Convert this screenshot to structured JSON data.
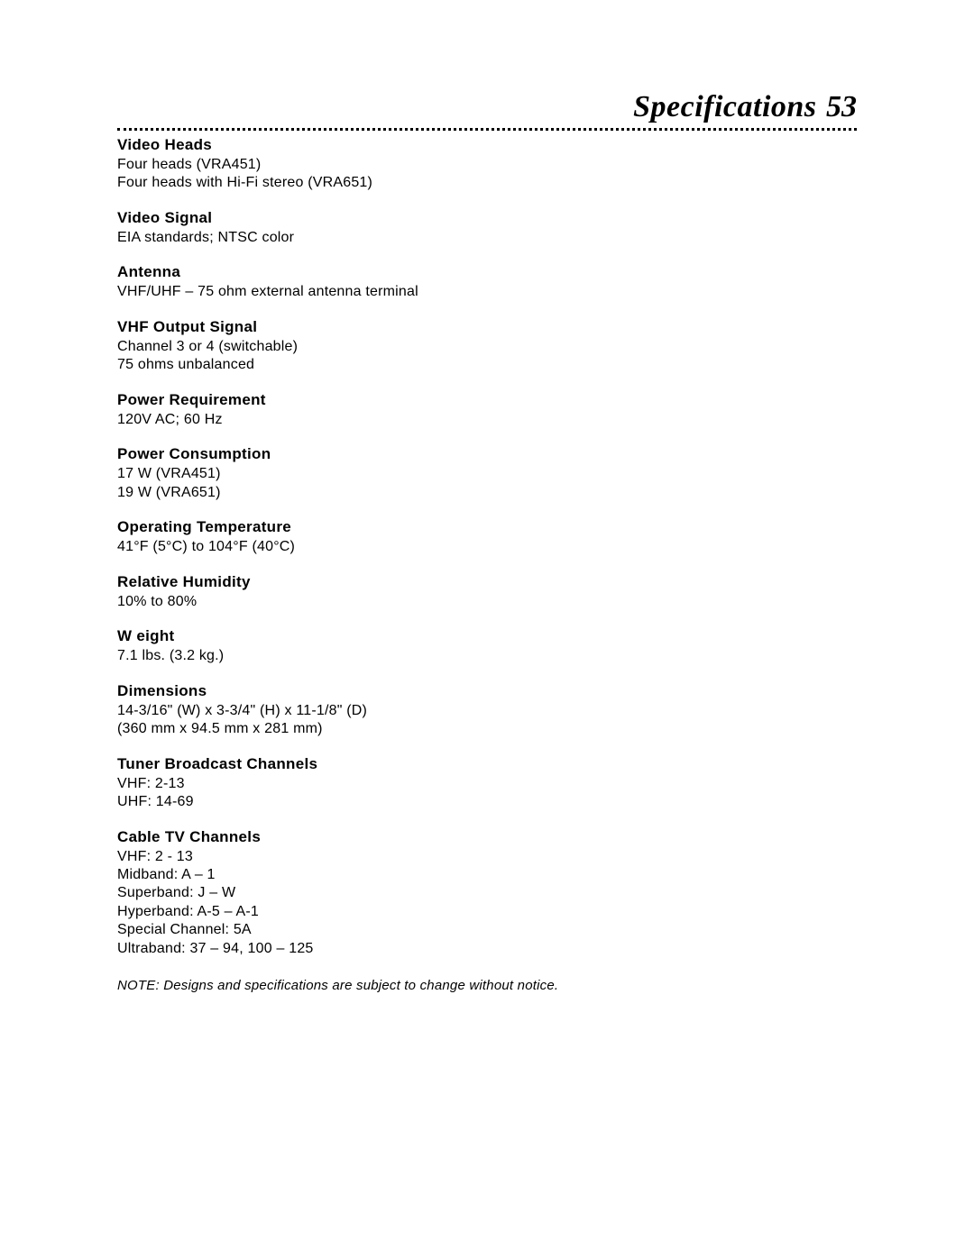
{
  "header": {
    "title": "Specifications",
    "page_number": "53"
  },
  "specs": [
    {
      "heading": "Video Heads",
      "lines": [
        "Four heads (VRA451)",
        "Four heads with Hi-Fi stereo (VRA651)"
      ]
    },
    {
      "heading": "Video Signal",
      "lines": [
        "EIA standards; NTSC color"
      ]
    },
    {
      "heading": "Antenna",
      "lines": [
        "VHF/UHF – 75 ohm external antenna terminal"
      ]
    },
    {
      "heading": "VHF Output Signal",
      "lines": [
        "Channel 3 or 4 (switchable)",
        "75 ohms unbalanced"
      ]
    },
    {
      "heading": "Power Requirement",
      "lines": [
        "120V AC; 60 Hz"
      ]
    },
    {
      "heading": "Power Consumption",
      "lines": [
        "17 W (VRA451)",
        "19 W (VRA651)"
      ]
    },
    {
      "heading": "Operating Temperature",
      "lines": [
        "41°F (5°C) to 104°F (40°C)"
      ]
    },
    {
      "heading": "Relative Humidity",
      "lines": [
        "10% to 80%"
      ]
    },
    {
      "heading": "W eight",
      "lines": [
        "7.1 lbs. (3.2 kg.)"
      ]
    },
    {
      "heading": "Dimensions",
      "lines": [
        "14-3/16\" (W) x 3-3/4\" (H) x 11-1/8\" (D)",
        "(360 mm x 94.5 mm x 281 mm)"
      ]
    },
    {
      "heading": "Tuner Broadcast Channels",
      "lines": [
        "VHF:  2-13",
        "UHF:  14-69"
      ]
    },
    {
      "heading": "Cable TV Channels",
      "lines": [
        "VHF:  2 - 13",
        "Midband:  A – 1",
        "Superband:  J – W",
        "Hyperband:  A-5 – A-1",
        "Special Channel:  5A",
        "Ultraband:  37 – 94, 100 – 125"
      ]
    }
  ],
  "note": "NOTE: Designs and specifications are subject to change without notice."
}
